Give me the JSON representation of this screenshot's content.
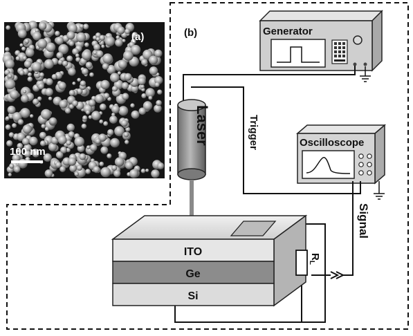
{
  "panel_a": {
    "label": "(a)",
    "scale_bar_text": "100 nm"
  },
  "panel_b": {
    "label": "(b)",
    "generator_label": "Generator",
    "oscilloscope_label": "Oscilloscope",
    "laser_label": "Laser",
    "trigger_label": "Trigger",
    "signal_label": "Signal",
    "resistor_label": "R",
    "resistor_subscript": "L",
    "layers": [
      "ITO",
      "Ge",
      "Si"
    ]
  },
  "colors": {
    "generator_body": "#cfcfcf",
    "oscilloscope_body": "#d4d4d4",
    "laser_body": "#9a9a9a",
    "ito_layer": "#e6e6e6",
    "ge_layer": "#8c8c8c",
    "si_layer": "#dcdcdc"
  }
}
